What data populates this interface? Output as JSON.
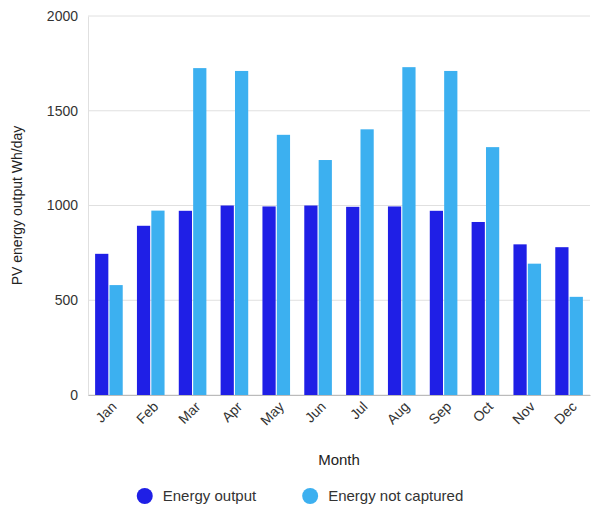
{
  "chart_data": {
    "type": "bar",
    "y_label": "PV energy output Wh/day",
    "x_label": "Month",
    "categories": [
      "Jan",
      "Feb",
      "Mar",
      "Apr",
      "May",
      "Jun",
      "Jul",
      "Aug",
      "Sep",
      "Oct",
      "Nov",
      "Dec"
    ],
    "series": [
      {
        "name": "Energy output",
        "color": "#1f1fe6",
        "values": [
          745,
          893,
          972,
          1000,
          995,
          1000,
          993,
          995,
          972,
          913,
          795,
          780
        ]
      },
      {
        "name": "Energy not captured",
        "color": "#3cb0f0",
        "values": [
          580,
          973,
          1725,
          1710,
          1373,
          1240,
          1402,
          1730,
          1710,
          1308,
          693,
          518
        ]
      }
    ],
    "ylim": [
      0,
      2000
    ],
    "yticks": [
      0,
      500,
      1000,
      1500,
      2000
    ],
    "grid": true,
    "legend": "bottom"
  }
}
